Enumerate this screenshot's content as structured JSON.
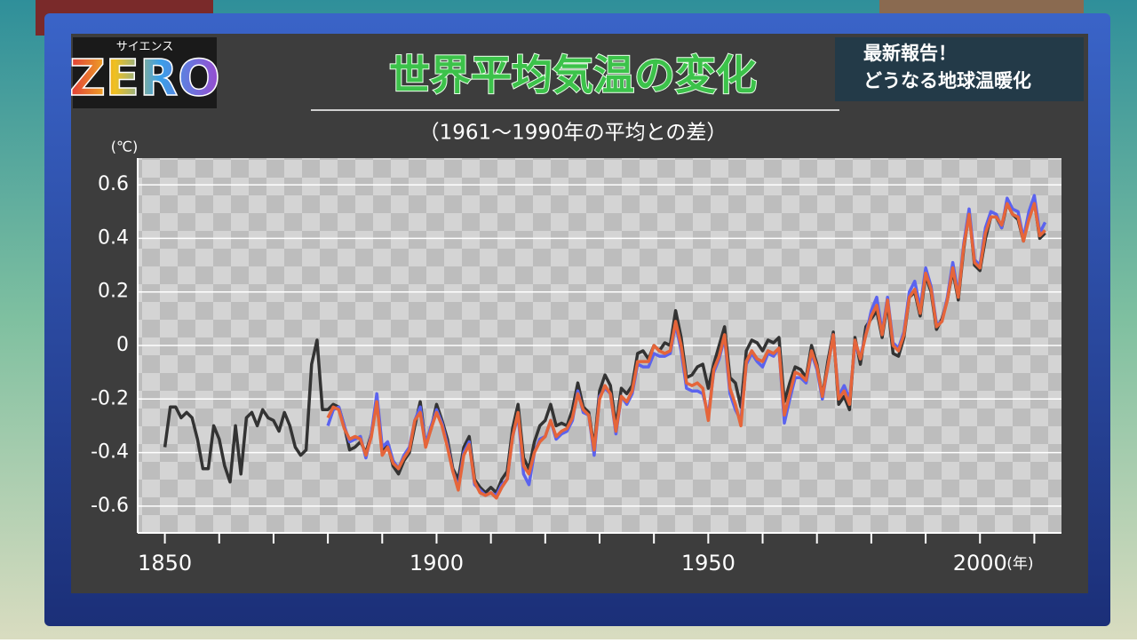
{
  "logo": {
    "sub": "サイエンス",
    "main": "ZERO"
  },
  "caption": [
    "最新報告！",
    "どうなる地球温暖化"
  ],
  "chart_data": {
    "type": "line",
    "title": "世界平均気温の変化",
    "subtitle": "（1961～1990年の平均との差）",
    "xlabel": "(年)",
    "ylabel": "(℃)",
    "x": [
      1850,
      1851,
      1852,
      1853,
      1854,
      1855,
      1856,
      1857,
      1858,
      1859,
      1860,
      1861,
      1862,
      1863,
      1864,
      1865,
      1866,
      1867,
      1868,
      1869,
      1870,
      1871,
      1872,
      1873,
      1874,
      1875,
      1876,
      1877,
      1878,
      1879,
      1880,
      1881,
      1882,
      1883,
      1884,
      1885,
      1886,
      1887,
      1888,
      1889,
      1890,
      1891,
      1892,
      1893,
      1894,
      1895,
      1896,
      1897,
      1898,
      1899,
      1900,
      1901,
      1902,
      1903,
      1904,
      1905,
      1906,
      1907,
      1908,
      1909,
      1910,
      1911,
      1912,
      1913,
      1914,
      1915,
      1916,
      1917,
      1918,
      1919,
      1920,
      1921,
      1922,
      1923,
      1924,
      1925,
      1926,
      1927,
      1928,
      1929,
      1930,
      1931,
      1932,
      1933,
      1934,
      1935,
      1936,
      1937,
      1938,
      1939,
      1940,
      1941,
      1942,
      1943,
      1944,
      1945,
      1946,
      1947,
      1948,
      1949,
      1950,
      1951,
      1952,
      1953,
      1954,
      1955,
      1956,
      1957,
      1958,
      1959,
      1960,
      1961,
      1962,
      1963,
      1964,
      1965,
      1966,
      1967,
      1968,
      1969,
      1970,
      1971,
      1972,
      1973,
      1974,
      1975,
      1976,
      1977,
      1978,
      1979,
      1980,
      1981,
      1982,
      1983,
      1984,
      1985,
      1986,
      1987,
      1988,
      1989,
      1990,
      1991,
      1992,
      1993,
      1994,
      1995,
      1996,
      1997,
      1998,
      1999,
      2000,
      2001,
      2002,
      2003,
      2004,
      2005,
      2006,
      2007,
      2008,
      2009,
      2010,
      2011,
      2012
    ],
    "series": [
      {
        "color": "#333333",
        "values": [
          -0.38,
          -0.23,
          -0.23,
          -0.27,
          -0.25,
          -0.27,
          -0.35,
          -0.46,
          -0.46,
          -0.3,
          -0.35,
          -0.45,
          -0.51,
          -0.3,
          -0.48,
          -0.27,
          -0.25,
          -0.3,
          -0.24,
          -0.27,
          -0.28,
          -0.32,
          -0.25,
          -0.3,
          -0.38,
          -0.41,
          -0.39,
          -0.07,
          0.02,
          -0.24,
          -0.24,
          -0.22,
          -0.23,
          -0.3,
          -0.39,
          -0.38,
          -0.36,
          -0.4,
          -0.33,
          -0.2,
          -0.4,
          -0.37,
          -0.45,
          -0.48,
          -0.43,
          -0.4,
          -0.3,
          -0.21,
          -0.37,
          -0.31,
          -0.22,
          -0.28,
          -0.35,
          -0.46,
          -0.5,
          -0.38,
          -0.34,
          -0.5,
          -0.53,
          -0.55,
          -0.53,
          -0.55,
          -0.5,
          -0.47,
          -0.31,
          -0.22,
          -0.42,
          -0.46,
          -0.36,
          -0.3,
          -0.28,
          -0.22,
          -0.3,
          -0.29,
          -0.3,
          -0.24,
          -0.14,
          -0.23,
          -0.25,
          -0.38,
          -0.17,
          -0.11,
          -0.15,
          -0.3,
          -0.16,
          -0.18,
          -0.15,
          -0.03,
          -0.02,
          -0.05,
          0.0,
          -0.02,
          0.01,
          0.0,
          0.13,
          0.03,
          -0.12,
          -0.11,
          -0.08,
          -0.07,
          -0.16,
          -0.07,
          0.0,
          0.07,
          -0.12,
          -0.14,
          -0.23,
          -0.02,
          0.02,
          0.01,
          -0.02,
          0.02,
          0.01,
          0.03,
          -0.21,
          -0.14,
          -0.08,
          -0.09,
          -0.12,
          0.0,
          -0.07,
          -0.19,
          -0.06,
          0.05,
          -0.22,
          -0.19,
          -0.24,
          0.03,
          -0.07,
          0.07,
          0.1,
          0.13,
          0.03,
          0.16,
          -0.03,
          -0.04,
          0.03,
          0.18,
          0.2,
          0.11,
          0.26,
          0.2,
          0.06,
          0.1,
          0.17,
          0.28,
          0.17,
          0.36,
          0.5,
          0.3,
          0.28,
          0.4,
          0.48,
          0.48,
          0.44,
          0.53,
          0.49,
          0.47,
          0.39,
          0.49,
          0.54,
          0.4,
          0.42
        ]
      },
      {
        "color": "#5b63ee",
        "values": [
          null,
          null,
          null,
          null,
          null,
          null,
          null,
          null,
          null,
          null,
          null,
          null,
          null,
          null,
          null,
          null,
          null,
          null,
          null,
          null,
          null,
          null,
          null,
          null,
          null,
          null,
          null,
          null,
          null,
          null,
          -0.3,
          -0.24,
          -0.23,
          -0.3,
          -0.36,
          -0.35,
          -0.34,
          -0.42,
          -0.33,
          -0.18,
          -0.38,
          -0.36,
          -0.43,
          -0.46,
          -0.41,
          -0.38,
          -0.28,
          -0.23,
          -0.37,
          -0.3,
          -0.24,
          -0.29,
          -0.37,
          -0.47,
          -0.53,
          -0.4,
          -0.36,
          -0.52,
          -0.54,
          -0.56,
          -0.55,
          -0.56,
          -0.52,
          -0.5,
          -0.34,
          -0.26,
          -0.48,
          -0.52,
          -0.4,
          -0.35,
          -0.34,
          -0.28,
          -0.35,
          -0.33,
          -0.32,
          -0.28,
          -0.17,
          -0.25,
          -0.26,
          -0.41,
          -0.19,
          -0.16,
          -0.18,
          -0.33,
          -0.19,
          -0.22,
          -0.18,
          -0.07,
          -0.08,
          -0.08,
          -0.03,
          -0.04,
          -0.04,
          -0.03,
          0.08,
          -0.02,
          -0.16,
          -0.17,
          -0.17,
          -0.18,
          -0.26,
          -0.1,
          -0.05,
          0.03,
          -0.18,
          -0.24,
          -0.28,
          -0.07,
          -0.03,
          -0.06,
          -0.08,
          -0.03,
          -0.04,
          -0.01,
          -0.29,
          -0.2,
          -0.12,
          -0.12,
          -0.14,
          -0.03,
          -0.09,
          -0.2,
          -0.08,
          0.04,
          -0.19,
          -0.15,
          -0.2,
          0.0,
          -0.04,
          0.04,
          0.13,
          0.18,
          0.05,
          0.18,
          0.01,
          -0.01,
          0.05,
          0.2,
          0.24,
          0.14,
          0.29,
          0.22,
          0.08,
          0.09,
          0.18,
          0.31,
          0.19,
          0.38,
          0.51,
          0.32,
          0.3,
          0.44,
          0.5,
          0.49,
          0.44,
          0.55,
          0.51,
          0.5,
          0.4,
          0.5,
          0.56,
          0.42,
          0.46
        ]
      },
      {
        "color": "#e5653a",
        "values": [
          null,
          null,
          null,
          null,
          null,
          null,
          null,
          null,
          null,
          null,
          null,
          null,
          null,
          null,
          null,
          null,
          null,
          null,
          null,
          null,
          null,
          null,
          null,
          null,
          null,
          null,
          null,
          null,
          null,
          null,
          -0.27,
          -0.23,
          -0.24,
          -0.31,
          -0.35,
          -0.34,
          -0.35,
          -0.41,
          -0.34,
          -0.21,
          -0.41,
          -0.38,
          -0.44,
          -0.46,
          -0.42,
          -0.39,
          -0.28,
          -0.25,
          -0.38,
          -0.31,
          -0.25,
          -0.3,
          -0.38,
          -0.47,
          -0.54,
          -0.41,
          -0.37,
          -0.51,
          -0.55,
          -0.56,
          -0.55,
          -0.57,
          -0.53,
          -0.5,
          -0.34,
          -0.25,
          -0.45,
          -0.48,
          -0.4,
          -0.36,
          -0.34,
          -0.28,
          -0.34,
          -0.32,
          -0.31,
          -0.27,
          -0.18,
          -0.24,
          -0.26,
          -0.39,
          -0.2,
          -0.15,
          -0.18,
          -0.32,
          -0.19,
          -0.21,
          -0.17,
          -0.06,
          -0.06,
          -0.06,
          0.0,
          -0.02,
          -0.03,
          -0.02,
          0.09,
          0.0,
          -0.14,
          -0.15,
          -0.14,
          -0.16,
          -0.28,
          -0.09,
          -0.04,
          0.04,
          -0.16,
          -0.22,
          -0.3,
          -0.06,
          -0.02,
          -0.05,
          -0.06,
          -0.02,
          -0.03,
          -0.01,
          -0.26,
          -0.18,
          -0.1,
          -0.11,
          -0.13,
          -0.02,
          -0.08,
          -0.19,
          -0.08,
          0.04,
          -0.2,
          -0.17,
          -0.22,
          0.02,
          -0.05,
          0.04,
          0.11,
          0.15,
          0.04,
          0.17,
          0.0,
          -0.02,
          0.04,
          0.18,
          0.21,
          0.12,
          0.27,
          0.21,
          0.07,
          0.09,
          0.17,
          0.29,
          0.18,
          0.37,
          0.49,
          0.31,
          0.29,
          0.42,
          0.48,
          0.48,
          0.45,
          0.53,
          0.49,
          0.48,
          0.39,
          0.47,
          0.53,
          0.41,
          0.43
        ]
      }
    ],
    "xlim": [
      1845,
      2015
    ],
    "xticks": [
      1850,
      1900,
      1950,
      2000
    ],
    "xminorticks": [
      1850,
      1860,
      1870,
      1880,
      1890,
      1900,
      1910,
      1920,
      1930,
      1940,
      1950,
      1960,
      1970,
      1980,
      1990,
      2000,
      2010
    ],
    "ylim": [
      -0.7,
      0.7
    ],
    "yticks": [
      0.6,
      0.4,
      0.2,
      0,
      -0.2,
      -0.4,
      -0.6
    ],
    "grid": true
  }
}
